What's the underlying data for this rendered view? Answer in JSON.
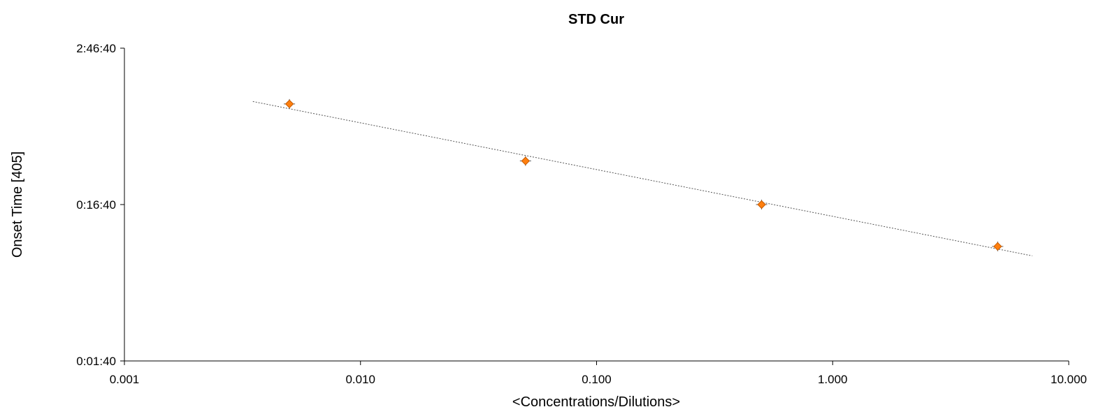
{
  "chart_data": {
    "type": "scatter",
    "title": "STD Cur",
    "xlabel": "<Concentrations/Dilutions>",
    "ylabel": "Onset Time [405]",
    "x_scale": "log",
    "y_scale": "log",
    "xlim": [
      0.001,
      10
    ],
    "ylim_seconds": [
      100,
      10000
    ],
    "x_ticks": [
      {
        "value": 0.001,
        "label": "0.001"
      },
      {
        "value": 0.01,
        "label": "0.010"
      },
      {
        "value": 0.1,
        "label": "0.100"
      },
      {
        "value": 1,
        "label": "1.000"
      },
      {
        "value": 10,
        "label": "10.000"
      }
    ],
    "y_ticks": [
      {
        "value": 100,
        "label": "0:01:40"
      },
      {
        "value": 1000,
        "label": "0:16:40"
      },
      {
        "value": 10000,
        "label": "2:46:40"
      }
    ],
    "series": [
      {
        "points": [
          {
            "x": 0.005,
            "y": "1:13:20"
          },
          {
            "x": 0.05,
            "y": "0:31:40"
          },
          {
            "x": 0.5,
            "y": "0:16:40"
          },
          {
            "x": 5,
            "y": "0:09:00"
          }
        ],
        "color": "#ff7f0e",
        "marker": "diamond"
      }
    ],
    "fit_line": {
      "style": "dotted",
      "color": "#555555",
      "from": {
        "x": 0.0035,
        "y": "1:16:00"
      },
      "to": {
        "x": 7.0,
        "y": "0:07:50"
      }
    },
    "grid": false,
    "legend": "none"
  }
}
